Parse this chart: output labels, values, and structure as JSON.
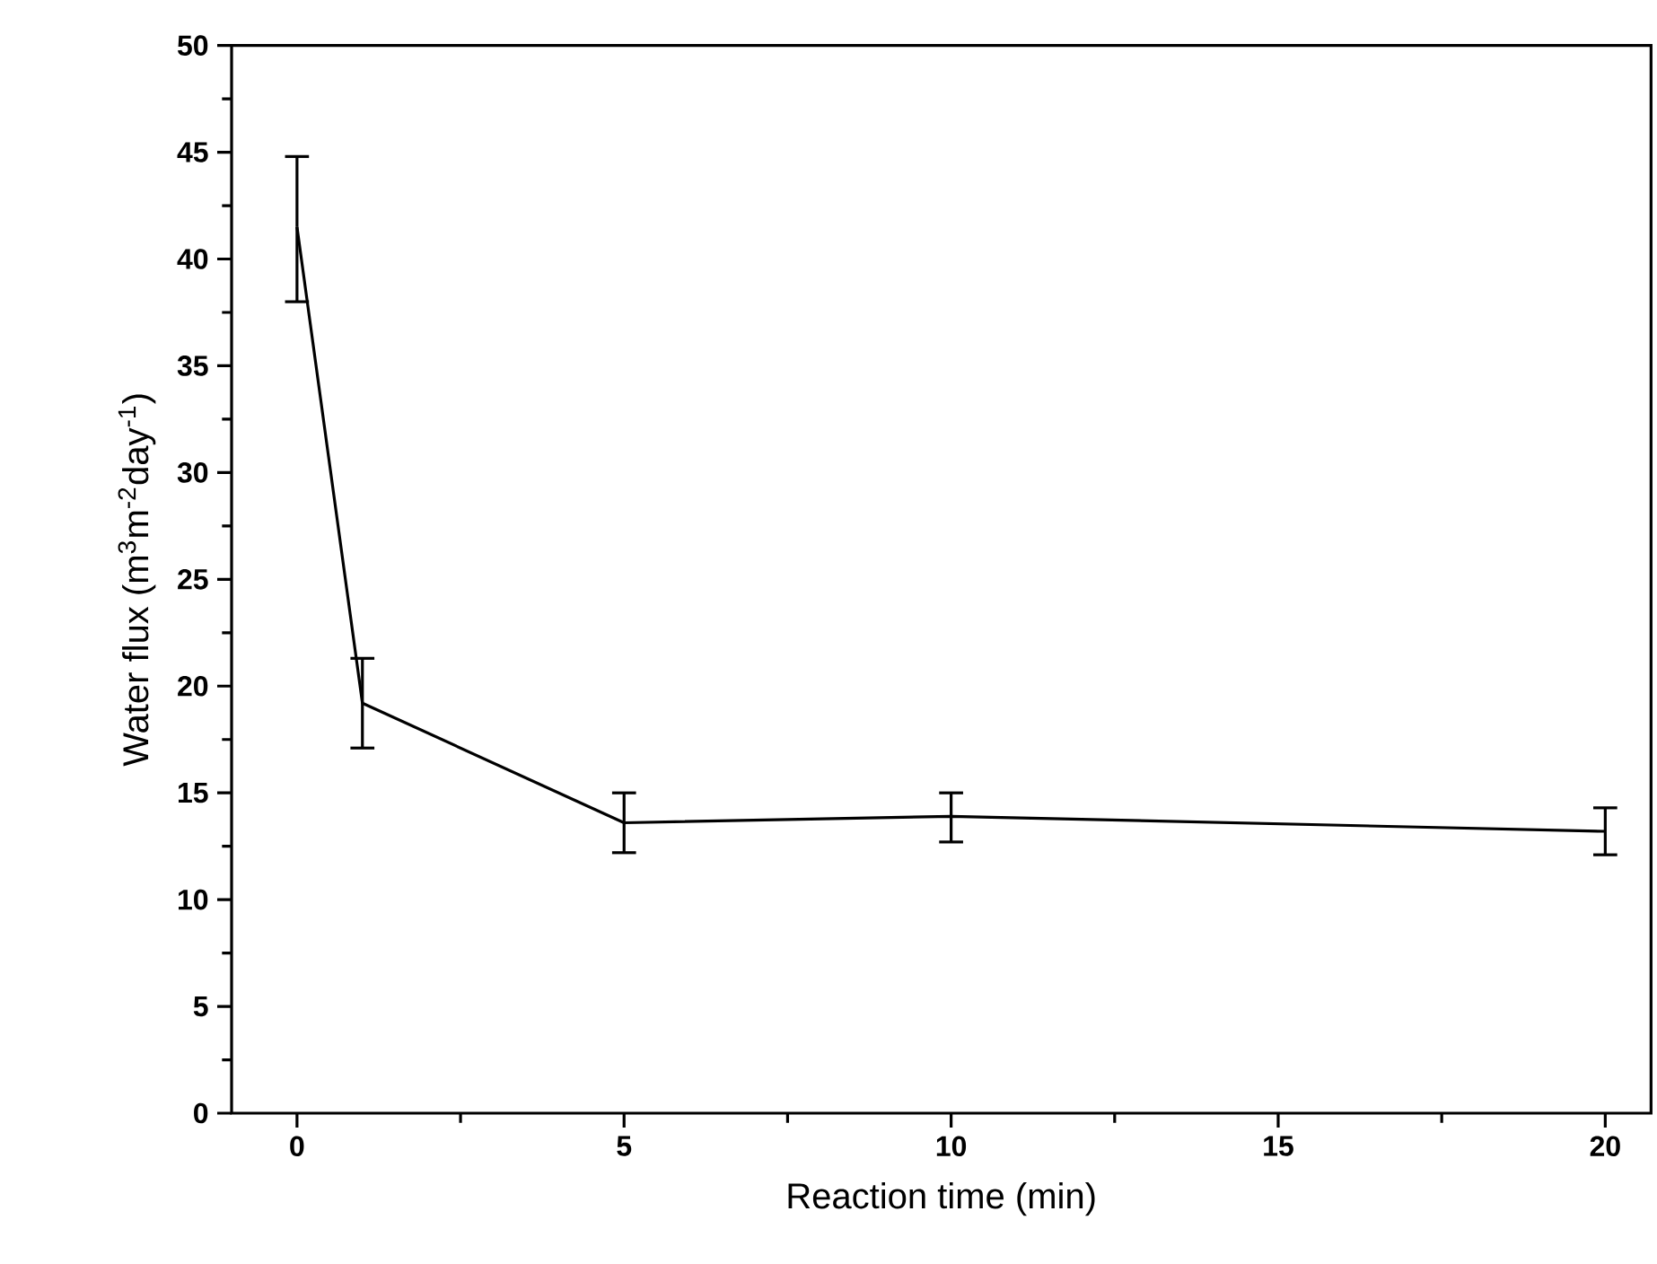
{
  "chart_data": {
    "type": "line",
    "xlabel": "Reaction time (min)",
    "ylabel": "Water flux (m$^{3}$m$^{-2}$day$^{-1}$)",
    "x": [
      0,
      1,
      5,
      10,
      20
    ],
    "series": [
      {
        "color": "#000000",
        "values": [
          41.5,
          19.2,
          13.6,
          13.9,
          13.2
        ],
        "errors": [
          [
            38.0,
            44.8
          ],
          [
            17.1,
            21.3
          ],
          [
            12.2,
            15.0
          ],
          [
            12.7,
            15.0
          ],
          [
            12.1,
            14.3
          ]
        ]
      }
    ],
    "xlim": [
      -1,
      20.7
    ],
    "ylim": [
      0,
      50
    ],
    "xticks": [
      0,
      5,
      10,
      15,
      20
    ],
    "yticks": [
      0,
      5,
      10,
      15,
      20,
      25,
      30,
      35,
      40,
      45,
      50
    ],
    "marker": "none",
    "line_style": "solid"
  }
}
